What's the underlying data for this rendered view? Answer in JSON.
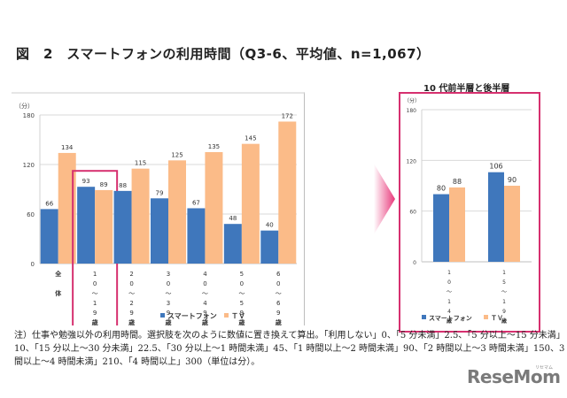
{
  "title": "図　2　スマートフォンの利用時間（Q3-6、平均値、n=1,067）",
  "colors": {
    "smartphone": "#3f77bc",
    "tv": "#fbbb88",
    "highlight": "#d6306f",
    "grid": "#d9d9d9"
  },
  "chart_data": [
    {
      "type": "bar",
      "title": "",
      "ylabel": "（分）",
      "xlabel": "",
      "ylim": [
        0,
        180
      ],
      "yticks": [
        "0",
        "60",
        "120",
        "180"
      ],
      "grid": true,
      "legend": "bottom",
      "categories": [
        "全体",
        "10～19歳",
        "20～29歳",
        "30～39歳",
        "40～49歳",
        "50～59歳",
        "60～69歳"
      ],
      "category_labels_vertical": [
        [
          "全",
          "",
          "体"
        ],
        [
          "1",
          "0",
          "～",
          "1",
          "9",
          "歳"
        ],
        [
          "2",
          "0",
          "～",
          "2",
          "9",
          "歳"
        ],
        [
          "3",
          "0",
          "～",
          "3",
          "9",
          "歳"
        ],
        [
          "4",
          "0",
          "～",
          "4",
          "9",
          "歳"
        ],
        [
          "5",
          "0",
          "～",
          "5",
          "9",
          "歳"
        ],
        [
          "6",
          "0",
          "～",
          "6",
          "9",
          "歳"
        ]
      ],
      "highlighted_category": "10～19歳",
      "series": [
        {
          "name": "スマートフォン",
          "values": [
            66,
            93,
            88,
            79,
            67,
            48,
            40
          ]
        },
        {
          "name": "ＴＶ",
          "values": [
            134,
            89,
            115,
            125,
            135,
            145,
            172
          ]
        }
      ]
    },
    {
      "type": "bar",
      "title": "10 代前半層と後半層",
      "ylabel": "（分）",
      "xlabel": "",
      "ylim": [
        0,
        180
      ],
      "yticks": [
        "0",
        "60",
        "120",
        "180"
      ],
      "grid": true,
      "legend": "bottom",
      "categories": [
        "10～14歳",
        "15～19歳"
      ],
      "category_labels_vertical": [
        [
          "1",
          "0",
          "～",
          "1",
          "4",
          "歳"
        ],
        [
          "1",
          "5",
          "～",
          "1",
          "9",
          "歳"
        ]
      ],
      "series": [
        {
          "name": "スマートフォン",
          "values": [
            80,
            106
          ]
        },
        {
          "name": "ＴＶ",
          "values": [
            88,
            90
          ]
        }
      ]
    }
  ],
  "note": [
    "注）仕事や勉強以外の利用時間。選択肢を次のように数値に置き換えて算出。「利用しない」0、「5 分未満」2.5、「5 分以上～15 分未満」",
    "10、「15 分以上～30 分未満」22.5、「30 分以上～1 時間未満」45、「1 時間以上～2 時間未満」90、「2 時間以上～3 時間未満」150、3 時",
    "間以上～4 時間未満」210、「4 時間以上」300（単位は分）。"
  ],
  "logo": {
    "text": "ReseMom",
    "sub": "リセマム"
  }
}
